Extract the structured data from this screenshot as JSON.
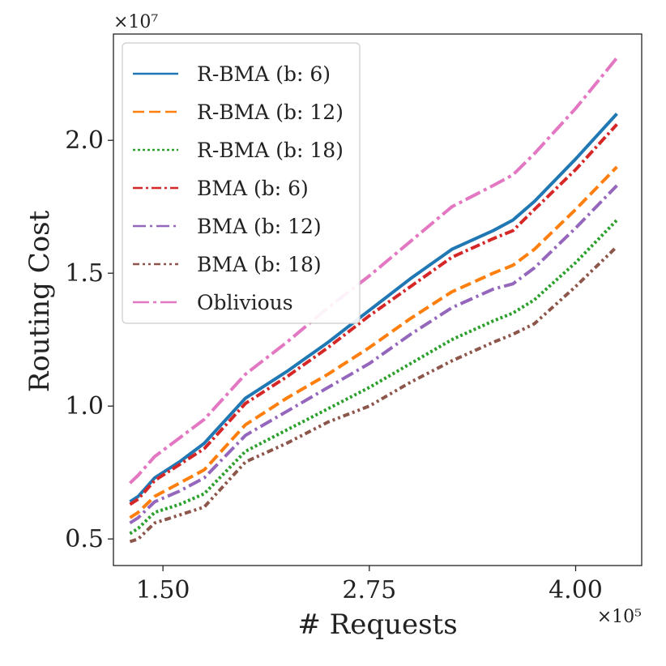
{
  "chart_data": {
    "type": "line",
    "xlabel": "# Requests",
    "ylabel": "Routing Cost",
    "x_multiplier": "×10⁵",
    "y_multiplier": "×10⁷",
    "xlim": [
      1.2,
      4.4
    ],
    "ylim": [
      0.4,
      2.4
    ],
    "xticks": [
      1.5,
      2.75,
      4.0
    ],
    "xtick_labels": [
      "1.50",
      "2.75",
      "4.00"
    ],
    "yticks": [
      0.5,
      1.0,
      1.5,
      2.0
    ],
    "ytick_labels": [
      "0.5",
      "1.0",
      "1.5",
      "2.0"
    ],
    "grid": false,
    "legend_position": "top-left",
    "x": [
      1.3,
      1.35,
      1.45,
      1.6,
      1.75,
      2.0,
      2.25,
      2.5,
      2.75,
      3.0,
      3.25,
      3.5,
      3.62,
      3.75,
      4.0,
      4.25
    ],
    "series": [
      {
        "name": "R-BMA (b: 6)",
        "color": "#1f77b4",
        "dash": "solid",
        "values": [
          0.64,
          0.66,
          0.73,
          0.79,
          0.86,
          1.03,
          1.13,
          1.24,
          1.36,
          1.48,
          1.59,
          1.66,
          1.7,
          1.77,
          1.93,
          2.1
        ]
      },
      {
        "name": "R-BMA (b: 12)",
        "color": "#ff7f0e",
        "dash": "dashed",
        "values": [
          0.58,
          0.6,
          0.66,
          0.71,
          0.76,
          0.93,
          1.03,
          1.12,
          1.22,
          1.33,
          1.43,
          1.5,
          1.53,
          1.59,
          1.74,
          1.9
        ]
      },
      {
        "name": "R-BMA (b: 18)",
        "color": "#2ca02c",
        "dash": "dotted",
        "values": [
          0.52,
          0.54,
          0.6,
          0.63,
          0.67,
          0.83,
          0.91,
          0.99,
          1.07,
          1.16,
          1.25,
          1.32,
          1.35,
          1.4,
          1.54,
          1.7
        ]
      },
      {
        "name": "BMA (b: 6)",
        "color": "#d62728",
        "dash": "dashdot",
        "values": [
          0.63,
          0.65,
          0.72,
          0.78,
          0.84,
          1.01,
          1.11,
          1.22,
          1.34,
          1.45,
          1.56,
          1.63,
          1.66,
          1.74,
          1.89,
          2.06
        ]
      },
      {
        "name": "BMA (b: 12)",
        "color": "#9467bd",
        "dash": "dashdot2",
        "values": [
          0.56,
          0.58,
          0.64,
          0.68,
          0.73,
          0.89,
          0.98,
          1.07,
          1.16,
          1.27,
          1.37,
          1.44,
          1.46,
          1.52,
          1.67,
          1.83
        ]
      },
      {
        "name": "BMA (b: 18)",
        "color": "#8c564b",
        "dash": "dashdotdot",
        "values": [
          0.49,
          0.5,
          0.56,
          0.59,
          0.62,
          0.79,
          0.86,
          0.94,
          1.0,
          1.09,
          1.17,
          1.24,
          1.27,
          1.31,
          1.45,
          1.6
        ]
      },
      {
        "name": "Oblivious",
        "color": "#e377c2",
        "dash": "longdashdot",
        "values": [
          0.71,
          0.74,
          0.81,
          0.88,
          0.95,
          1.12,
          1.24,
          1.37,
          1.49,
          1.62,
          1.75,
          1.83,
          1.87,
          1.95,
          2.12,
          2.31
        ]
      }
    ]
  }
}
